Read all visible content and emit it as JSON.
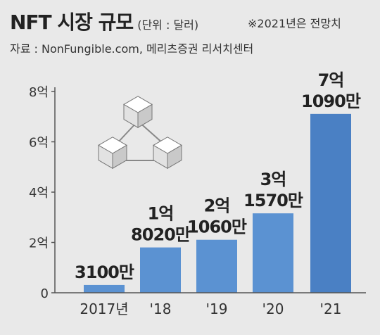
{
  "title": "NFT 시장 규모",
  "unit": "(단위 : 달러)",
  "note": "※2021년은 전망치",
  "source": "자료 : NonFungible.com, 메리츠증권 리서치센터",
  "colors": {
    "bar": "#4a80c4",
    "bar_light": "#5b92d2",
    "background": "#e9e9e9",
    "text": "#222222",
    "cube_face": "#ffffff",
    "cube_side": "#c9c9c9"
  },
  "decoration": {
    "icon": "blockchain-cubes-icon"
  },
  "chart_data": {
    "type": "bar",
    "categories": [
      "2017년",
      "'18",
      "'19",
      "'20",
      "'21"
    ],
    "values": [
      31000000,
      180200000,
      210600000,
      315700000,
      710900000
    ],
    "value_labels": [
      [
        "3100만"
      ],
      [
        "1억",
        "8020만"
      ],
      [
        "2억",
        "1060만"
      ],
      [
        "3억",
        "1570만"
      ],
      [
        "7억",
        "1090만"
      ]
    ],
    "yticks": [
      0,
      200000000,
      400000000,
      600000000,
      800000000
    ],
    "ytick_labels": [
      "0",
      "2억",
      "4억",
      "6억",
      "8억"
    ],
    "ylim": [
      0,
      800000000
    ],
    "grid": false,
    "legend": "none"
  }
}
